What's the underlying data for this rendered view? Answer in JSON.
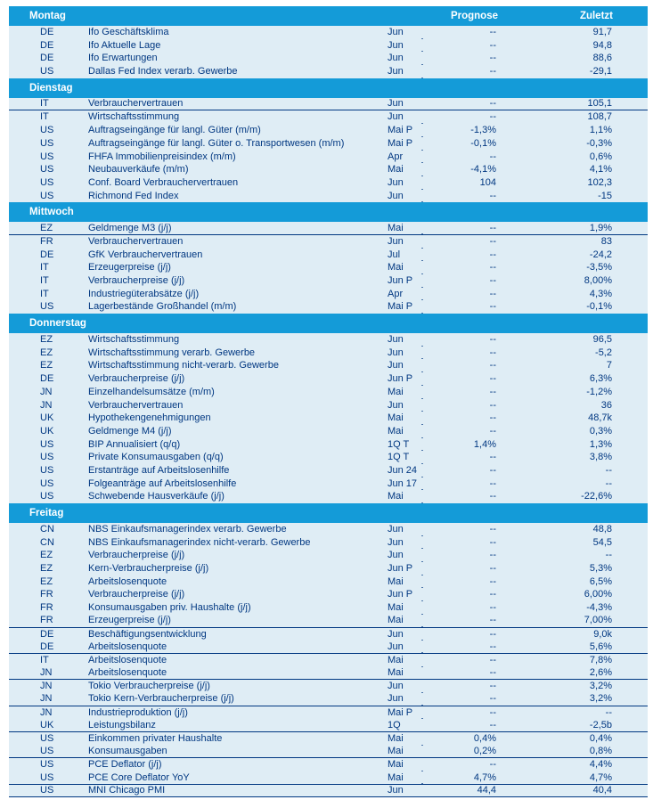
{
  "table": {
    "column_headers": {
      "prognose": "Prognose",
      "zuletzt": "Zuletzt"
    },
    "colors": {
      "header_band": "#149bd8",
      "row_background": "#dfedf5",
      "text": "#003781",
      "header_text": "#ffffff",
      "divider_line": "#003781"
    },
    "sections": [
      {
        "day": "Montag",
        "rows": [
          {
            "country": "DE",
            "indicator": "Ifo Geschäftsklima",
            "period": "Jun",
            "prognose": "--",
            "zuletzt": "91,7",
            "divider_below": false
          },
          {
            "country": "DE",
            "indicator": "Ifo Aktuelle Lage",
            "period": "Jun",
            "prognose": "--",
            "zuletzt": "94,8",
            "divider_below": false
          },
          {
            "country": "DE",
            "indicator": "Ifo Erwartungen",
            "period": "Jun",
            "prognose": "--",
            "zuletzt": "88,6",
            "divider_below": false
          },
          {
            "country": "US",
            "indicator": "Dallas Fed Index verarb. Gewerbe",
            "period": "Jun",
            "prognose": "--",
            "zuletzt": "-29,1",
            "divider_below": false
          }
        ]
      },
      {
        "day": "Dienstag",
        "rows": [
          {
            "country": "IT",
            "indicator": "Verbrauchervertrauen",
            "period": "Jun",
            "prognose": "--",
            "zuletzt": "105,1",
            "divider_below": true
          },
          {
            "country": "IT",
            "indicator": "Wirtschaftsstimmung",
            "period": "Jun",
            "prognose": "--",
            "zuletzt": "108,7",
            "divider_below": false
          },
          {
            "country": "US",
            "indicator": "Auftragseingänge für langl. Güter (m/m)",
            "period": "Mai P",
            "prognose": "-1,3%",
            "zuletzt": "1,1%",
            "divider_below": false
          },
          {
            "country": "US",
            "indicator": "Auftragseingänge für langl. Güter o. Transportwesen (m/m)",
            "period": "Mai P",
            "prognose": "-0,1%",
            "zuletzt": "-0,3%",
            "divider_below": false
          },
          {
            "country": "US",
            "indicator": "FHFA Immobilienpreisindex (m/m)",
            "period": "Apr",
            "prognose": "--",
            "zuletzt": "0,6%",
            "divider_below": false
          },
          {
            "country": "US",
            "indicator": "Neubauverkäufe (m/m)",
            "period": "Mai",
            "prognose": "-4,1%",
            "zuletzt": "4,1%",
            "divider_below": false
          },
          {
            "country": "US",
            "indicator": "Conf. Board Verbrauchervertrauen",
            "period": "Jun",
            "prognose": "104",
            "zuletzt": "102,3",
            "divider_below": false
          },
          {
            "country": "US",
            "indicator": "Richmond Fed Index",
            "period": "Jun",
            "prognose": "--",
            "zuletzt": "-15",
            "divider_below": false
          }
        ]
      },
      {
        "day": "Mittwoch",
        "rows": [
          {
            "country": "EZ",
            "indicator": "Geldmenge M3 (j/j)",
            "period": "Mai",
            "prognose": "--",
            "zuletzt": "1,9%",
            "divider_below": true
          },
          {
            "country": "FR",
            "indicator": "Verbrauchervertrauen",
            "period": "Jun",
            "prognose": "--",
            "zuletzt": "83",
            "divider_below": false
          },
          {
            "country": "DE",
            "indicator": "GfK Verbrauchervertrauen",
            "period": "Jul",
            "prognose": "--",
            "zuletzt": "-24,2",
            "divider_below": false
          },
          {
            "country": "IT",
            "indicator": "Erzeugerpreise (j/j)",
            "period": "Mai",
            "prognose": "--",
            "zuletzt": "-3,5%",
            "divider_below": false
          },
          {
            "country": "IT",
            "indicator": "Verbraucherpreise (j/j)",
            "period": "Jun P",
            "prognose": "--",
            "zuletzt": "8,00%",
            "divider_below": false
          },
          {
            "country": "IT",
            "indicator": "Industriegüterabsätze (j/j)",
            "period": "Apr",
            "prognose": "--",
            "zuletzt": "4,3%",
            "divider_below": false
          },
          {
            "country": "US",
            "indicator": "Lagerbestände Großhandel (m/m)",
            "period": "Mai P",
            "prognose": "--",
            "zuletzt": "-0,1%",
            "divider_below": false
          }
        ]
      },
      {
        "day": "Donnerstag",
        "rows": [
          {
            "country": "EZ",
            "indicator": "Wirtschaftsstimmung",
            "period": "Jun",
            "prognose": "--",
            "zuletzt": "96,5",
            "divider_below": false
          },
          {
            "country": "EZ",
            "indicator": "Wirtschaftsstimmung verarb. Gewerbe",
            "period": "Jun",
            "prognose": "--",
            "zuletzt": "-5,2",
            "divider_below": false
          },
          {
            "country": "EZ",
            "indicator": "Wirtschaftsstimmung nicht-verarb. Gewerbe",
            "period": "Jun",
            "prognose": "--",
            "zuletzt": "7",
            "divider_below": false
          },
          {
            "country": "DE",
            "indicator": "Verbraucherpreise (j/j)",
            "period": "Jun P",
            "prognose": "--",
            "zuletzt": "6,3%",
            "divider_below": false
          },
          {
            "country": "JN",
            "indicator": "Einzelhandelsumsätze (m/m)",
            "period": "Mai",
            "prognose": "--",
            "zuletzt": "-1,2%",
            "divider_below": false
          },
          {
            "country": "JN",
            "indicator": "Verbrauchervertrauen",
            "period": "Jun",
            "prognose": "--",
            "zuletzt": "36",
            "divider_below": false
          },
          {
            "country": "UK",
            "indicator": "Hypothekengenehmigungen",
            "period": "Mai",
            "prognose": "--",
            "zuletzt": "48,7k",
            "divider_below": false
          },
          {
            "country": "UK",
            "indicator": "Geldmenge M4 (j/j)",
            "period": "Mai",
            "prognose": "--",
            "zuletzt": "0,3%",
            "divider_below": false
          },
          {
            "country": "US",
            "indicator": "BIP Annualisiert (q/q)",
            "period": "1Q T",
            "prognose": "1,4%",
            "zuletzt": "1,3%",
            "divider_below": false
          },
          {
            "country": "US",
            "indicator": "Private Konsumausgaben (q/q)",
            "period": "1Q T",
            "prognose": "--",
            "zuletzt": "3,8%",
            "divider_below": false
          },
          {
            "country": "US",
            "indicator": "Erstanträge auf Arbeitslosenhilfe",
            "period": "Jun 24",
            "prognose": "--",
            "zuletzt": "--",
            "divider_below": false
          },
          {
            "country": "US",
            "indicator": "Folgeanträge auf Arbeitslosenhilfe",
            "period": "Jun 17",
            "prognose": "--",
            "zuletzt": "--",
            "divider_below": false
          },
          {
            "country": "US",
            "indicator": "Schwebende Hausverkäufe (j/j)",
            "period": "Mai",
            "prognose": "--",
            "zuletzt": "-22,6%",
            "divider_below": false
          }
        ]
      },
      {
        "day": "Freitag",
        "rows": [
          {
            "country": "CN",
            "indicator": "NBS Einkaufsmanagerindex verarb. Gewerbe",
            "period": "Jun",
            "prognose": "--",
            "zuletzt": "48,8",
            "divider_below": false
          },
          {
            "country": "CN",
            "indicator": "NBS Einkaufsmanagerindex nicht-verarb. Gewerbe",
            "period": "Jun",
            "prognose": "--",
            "zuletzt": "54,5",
            "divider_below": false
          },
          {
            "country": "EZ",
            "indicator": "Verbraucherpreise (j/j)",
            "period": "Jun",
            "prognose": "--",
            "zuletzt": "--",
            "divider_below": false
          },
          {
            "country": "EZ",
            "indicator": "Kern-Verbraucherpreise (j/j)",
            "period": "Jun P",
            "prognose": "--",
            "zuletzt": "5,3%",
            "divider_below": false
          },
          {
            "country": "EZ",
            "indicator": "Arbeitslosenquote",
            "period": "Mai",
            "prognose": "--",
            "zuletzt": "6,5%",
            "divider_below": false
          },
          {
            "country": "FR",
            "indicator": "Verbraucherpreise (j/j)",
            "period": "Jun P",
            "prognose": "--",
            "zuletzt": "6,00%",
            "divider_below": false
          },
          {
            "country": "FR",
            "indicator": "Konsumausgaben priv. Haushalte (j/j)",
            "period": "Mai",
            "prognose": "--",
            "zuletzt": "-4,3%",
            "divider_below": false
          },
          {
            "country": "FR",
            "indicator": "Erzeugerpreise (j/j)",
            "period": "Mai",
            "prognose": "--",
            "zuletzt": "7,00%",
            "divider_below": true
          },
          {
            "country": "DE",
            "indicator": "Beschäftigungsentwicklung",
            "period": "Jun",
            "prognose": "--",
            "zuletzt": "9,0k",
            "divider_below": false
          },
          {
            "country": "DE",
            "indicator": "Arbeitslosenquote",
            "period": "Jun",
            "prognose": "--",
            "zuletzt": "5,6%",
            "divider_below": true
          },
          {
            "country": "IT",
            "indicator": "Arbeitslosenquote",
            "period": "Mai",
            "prognose": "--",
            "zuletzt": "7,8%",
            "divider_below": false
          },
          {
            "country": "JN",
            "indicator": "Arbeitslosenquote",
            "period": "Mai",
            "prognose": "--",
            "zuletzt": "2,6%",
            "divider_below": true
          },
          {
            "country": "JN",
            "indicator": "Tokio Verbraucherpreise (j/j)",
            "period": "Jun",
            "prognose": "--",
            "zuletzt": "3,2%",
            "divider_below": false
          },
          {
            "country": "JN",
            "indicator": "Tokio Kern-Verbraucherpreise (j/j)",
            "period": "Jun",
            "prognose": "--",
            "zuletzt": "3,2%",
            "divider_below": true
          },
          {
            "country": "JN",
            "indicator": "Industrieproduktion (j/j)",
            "period": "Mai P",
            "prognose": "--",
            "zuletzt": "--",
            "divider_below": false
          },
          {
            "country": "UK",
            "indicator": "Leistungsbilanz",
            "period": "1Q",
            "prognose": "--",
            "zuletzt": "-2,5b",
            "divider_below": true
          },
          {
            "country": "US",
            "indicator": "Einkommen privater Haushalte",
            "period": "Mai",
            "prognose": "0,4%",
            "zuletzt": "0,4%",
            "divider_below": false
          },
          {
            "country": "US",
            "indicator": "Konsumausgaben",
            "period": "Mai",
            "prognose": "0,2%",
            "zuletzt": "0,8%",
            "divider_below": true
          },
          {
            "country": "US",
            "indicator": "PCE Deflator (j/j)",
            "period": "Mai",
            "prognose": "--",
            "zuletzt": "4,4%",
            "divider_below": false
          },
          {
            "country": "US",
            "indicator": "PCE Core Deflator YoY",
            "period": "Mai",
            "prognose": "4,7%",
            "zuletzt": "4,7%",
            "divider_below": true
          },
          {
            "country": "US",
            "indicator": "MNI Chicago PMI",
            "period": "Jun",
            "prognose": "44,4",
            "zuletzt": "40,4",
            "divider_below": true
          }
        ]
      }
    ]
  }
}
